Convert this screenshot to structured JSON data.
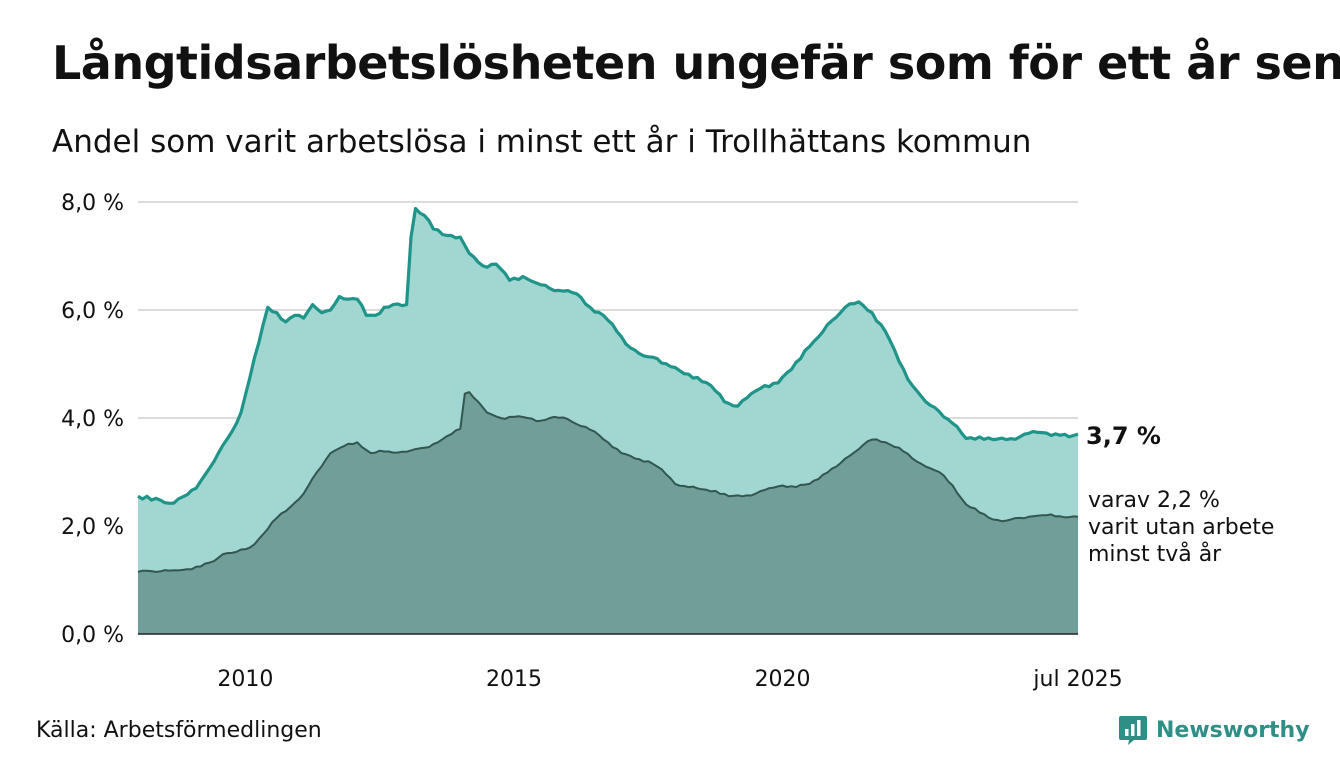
{
  "header": {
    "title": "Långtidsarbetslösheten ungefär som för ett år sen",
    "subtitle": "Andel som varit arbetslösa i minst ett år i Trollhättans kommun"
  },
  "footer": {
    "source": "Källa: Arbetsförmedlingen",
    "brand": "Newsworthy",
    "brand_color": "#2f8f86"
  },
  "chart_data": {
    "type": "area",
    "x_start": "2008-01",
    "x_end": "2025-07",
    "frequency": "monthly",
    "ylim": [
      0,
      8
    ],
    "y_ticks": [
      "0,0 %",
      "2,0 %",
      "4,0 %",
      "6,0 %",
      "8,0 %"
    ],
    "y_tick_values": [
      0,
      2,
      4,
      6,
      8
    ],
    "x_ticks": [
      "2010",
      "2015",
      "2020",
      "jul 2025"
    ],
    "x_tick_dates": [
      "2010-01",
      "2015-01",
      "2020-01",
      "2025-07"
    ],
    "grid": true,
    "series": [
      {
        "end_label": "3,7 %",
        "line_color": "#1f9488",
        "fill_color": "#a2d6d0",
        "anchors": [
          [
            "2008-01",
            2.55
          ],
          [
            "2008-02",
            2.5
          ],
          [
            "2008-03",
            2.55
          ],
          [
            "2008-04",
            2.48
          ],
          [
            "2008-06",
            2.48
          ],
          [
            "2008-08",
            2.42
          ],
          [
            "2008-10",
            2.5
          ],
          [
            "2008-12",
            2.58
          ],
          [
            "2009-02",
            2.7
          ],
          [
            "2009-04",
            2.95
          ],
          [
            "2009-06",
            3.2
          ],
          [
            "2009-08",
            3.5
          ],
          [
            "2009-10",
            3.75
          ],
          [
            "2009-12",
            4.1
          ],
          [
            "2010-02",
            4.75
          ],
          [
            "2010-04",
            5.4
          ],
          [
            "2010-06",
            6.05
          ],
          [
            "2010-08",
            5.95
          ],
          [
            "2010-10",
            5.78
          ],
          [
            "2010-12",
            5.9
          ],
          [
            "2011-02",
            5.85
          ],
          [
            "2011-04",
            6.1
          ],
          [
            "2011-06",
            5.95
          ],
          [
            "2011-08",
            6.0
          ],
          [
            "2011-10",
            6.25
          ],
          [
            "2011-12",
            6.2
          ],
          [
            "2012-02",
            6.2
          ],
          [
            "2012-04",
            5.9
          ],
          [
            "2012-06",
            5.9
          ],
          [
            "2012-08",
            6.05
          ],
          [
            "2012-10",
            6.1
          ],
          [
            "2012-12",
            6.08
          ],
          [
            "2013-01",
            6.1
          ],
          [
            "2013-02",
            7.35
          ],
          [
            "2013-03",
            7.88
          ],
          [
            "2013-05",
            7.75
          ],
          [
            "2013-07",
            7.5
          ],
          [
            "2013-09",
            7.4
          ],
          [
            "2013-11",
            7.38
          ],
          [
            "2014-01",
            7.35
          ],
          [
            "2014-03",
            7.05
          ],
          [
            "2014-06",
            6.82
          ],
          [
            "2014-09",
            6.85
          ],
          [
            "2014-12",
            6.55
          ],
          [
            "2015-03",
            6.62
          ],
          [
            "2015-06",
            6.5
          ],
          [
            "2015-09",
            6.4
          ],
          [
            "2015-12",
            6.35
          ],
          [
            "2016-03",
            6.3
          ],
          [
            "2016-06",
            6.05
          ],
          [
            "2016-09",
            5.9
          ],
          [
            "2016-12",
            5.6
          ],
          [
            "2017-03",
            5.3
          ],
          [
            "2017-06",
            5.15
          ],
          [
            "2017-09",
            5.1
          ],
          [
            "2017-12",
            4.95
          ],
          [
            "2018-03",
            4.82
          ],
          [
            "2018-06",
            4.75
          ],
          [
            "2018-09",
            4.6
          ],
          [
            "2018-12",
            4.3
          ],
          [
            "2019-03",
            4.22
          ],
          [
            "2019-06",
            4.45
          ],
          [
            "2019-09",
            4.6
          ],
          [
            "2019-12",
            4.65
          ],
          [
            "2020-03",
            4.9
          ],
          [
            "2020-06",
            5.25
          ],
          [
            "2020-09",
            5.5
          ],
          [
            "2020-12",
            5.8
          ],
          [
            "2021-03",
            6.05
          ],
          [
            "2021-06",
            6.15
          ],
          [
            "2021-09",
            5.95
          ],
          [
            "2021-12",
            5.6
          ],
          [
            "2022-03",
            5.05
          ],
          [
            "2022-06",
            4.6
          ],
          [
            "2022-09",
            4.3
          ],
          [
            "2022-12",
            4.12
          ],
          [
            "2023-03",
            3.9
          ],
          [
            "2023-06",
            3.62
          ],
          [
            "2023-09",
            3.65
          ],
          [
            "2023-12",
            3.6
          ],
          [
            "2024-03",
            3.6
          ],
          [
            "2024-06",
            3.65
          ],
          [
            "2024-09",
            3.75
          ],
          [
            "2024-12",
            3.72
          ],
          [
            "2025-03",
            3.68
          ],
          [
            "2025-05",
            3.65
          ],
          [
            "2025-07",
            3.7
          ]
        ]
      },
      {
        "end_label": "varav 2,2 %|varit utan arbete|minst två år",
        "line_color": "#33564f",
        "fill_color": "#6f9f98",
        "anchors": [
          [
            "2008-01",
            1.15
          ],
          [
            "2008-03",
            1.17
          ],
          [
            "2008-06",
            1.16
          ],
          [
            "2008-09",
            1.18
          ],
          [
            "2008-12",
            1.2
          ],
          [
            "2009-03",
            1.25
          ],
          [
            "2009-06",
            1.35
          ],
          [
            "2009-08",
            1.48
          ],
          [
            "2009-11",
            1.52
          ],
          [
            "2010-02",
            1.6
          ],
          [
            "2010-05",
            1.85
          ],
          [
            "2010-08",
            2.15
          ],
          [
            "2010-11",
            2.35
          ],
          [
            "2011-02",
            2.6
          ],
          [
            "2011-05",
            3.0
          ],
          [
            "2011-08",
            3.35
          ],
          [
            "2011-11",
            3.48
          ],
          [
            "2012-02",
            3.55
          ],
          [
            "2012-05",
            3.35
          ],
          [
            "2012-08",
            3.38
          ],
          [
            "2012-11",
            3.36
          ],
          [
            "2013-02",
            3.4
          ],
          [
            "2013-05",
            3.45
          ],
          [
            "2013-08",
            3.55
          ],
          [
            "2013-11",
            3.7
          ],
          [
            "2014-01",
            3.8
          ],
          [
            "2014-02",
            4.45
          ],
          [
            "2014-03",
            4.48
          ],
          [
            "2014-05",
            4.3
          ],
          [
            "2014-07",
            4.1
          ],
          [
            "2014-10",
            4.0
          ],
          [
            "2015-01",
            4.02
          ],
          [
            "2015-04",
            4.0
          ],
          [
            "2015-07",
            3.95
          ],
          [
            "2015-10",
            4.02
          ],
          [
            "2016-01",
            3.98
          ],
          [
            "2016-04",
            3.85
          ],
          [
            "2016-07",
            3.75
          ],
          [
            "2016-10",
            3.55
          ],
          [
            "2017-01",
            3.35
          ],
          [
            "2017-04",
            3.25
          ],
          [
            "2017-07",
            3.2
          ],
          [
            "2017-10",
            3.05
          ],
          [
            "2018-01",
            2.78
          ],
          [
            "2018-04",
            2.72
          ],
          [
            "2018-07",
            2.68
          ],
          [
            "2018-10",
            2.65
          ],
          [
            "2019-01",
            2.55
          ],
          [
            "2019-04",
            2.55
          ],
          [
            "2019-07",
            2.6
          ],
          [
            "2019-10",
            2.7
          ],
          [
            "2020-01",
            2.75
          ],
          [
            "2020-04",
            2.72
          ],
          [
            "2020-07",
            2.78
          ],
          [
            "2020-10",
            2.95
          ],
          [
            "2021-01",
            3.1
          ],
          [
            "2021-04",
            3.3
          ],
          [
            "2021-07",
            3.5
          ],
          [
            "2021-09",
            3.6
          ],
          [
            "2021-12",
            3.55
          ],
          [
            "2022-03",
            3.45
          ],
          [
            "2022-06",
            3.25
          ],
          [
            "2022-09",
            3.1
          ],
          [
            "2022-12",
            3.0
          ],
          [
            "2023-03",
            2.75
          ],
          [
            "2023-06",
            2.4
          ],
          [
            "2023-09",
            2.25
          ],
          [
            "2023-12",
            2.12
          ],
          [
            "2024-03",
            2.1
          ],
          [
            "2024-06",
            2.15
          ],
          [
            "2024-09",
            2.18
          ],
          [
            "2024-12",
            2.2
          ],
          [
            "2025-03",
            2.18
          ],
          [
            "2025-07",
            2.17
          ]
        ]
      }
    ]
  }
}
